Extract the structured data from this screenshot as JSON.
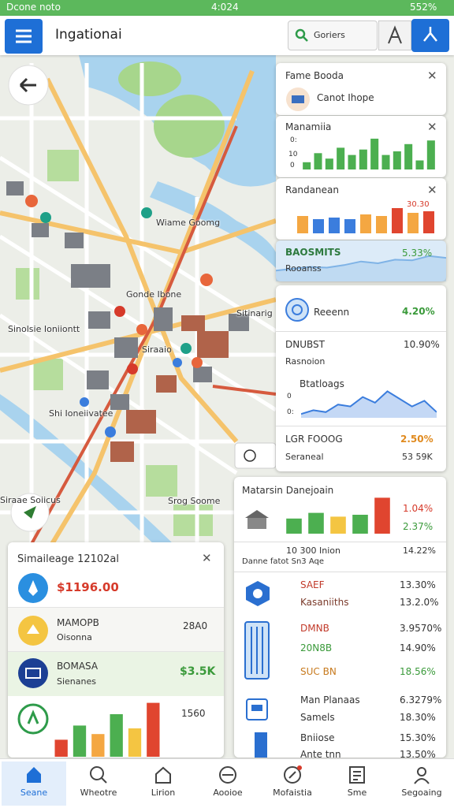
{
  "status_bar": {
    "carrier": "Dcone noto",
    "time": "4:024",
    "battery": "552%"
  },
  "header": {
    "title": "Ingationai",
    "search": "Goriers"
  },
  "map_labels": [
    "Wiame Goomg",
    "Gonde Ibone",
    "Sinolsie Ioniiontt",
    "Siraaio",
    "Sitinarig",
    "Shi Ioneiivatee",
    "Siraae Soiicus",
    "Srog Soome"
  ],
  "panel_fame": {
    "title": "Fame Booda",
    "subtitle": "Canot Ihope"
  },
  "panel_manamiia": {
    "title": "Manamiia",
    "axis_top": "0:",
    "axis_mid": "10",
    "axis_bottom": "0",
    "chart": {
      "type": "bar",
      "ylim": [
        0,
        100
      ],
      "color": "#4caf50",
      "values": [
        20,
        45,
        30,
        60,
        40,
        55,
        85,
        40,
        50,
        70,
        25,
        80
      ]
    }
  },
  "panel_randanean": {
    "title": "Randanean",
    "label": "30.30",
    "chart": {
      "type": "bar",
      "ylim": [
        0,
        100
      ],
      "colors": [
        "#f4a742",
        "#3b7ddd",
        "#3b7ddd",
        "#3b7ddd",
        "#f4a742",
        "#f4a742",
        "#e0452f",
        "#f4a742",
        "#e0452f"
      ],
      "values": [
        55,
        45,
        50,
        45,
        60,
        55,
        80,
        65,
        70
      ]
    }
  },
  "panel_baosmits": {
    "title": "BAOSMITS",
    "value": "5.33%",
    "subtitle": "Rooanss",
    "chart": {
      "type": "area",
      "ylim": [
        0,
        100
      ],
      "color": "#7fb3e6",
      "values": [
        30,
        35,
        40,
        38,
        45,
        55,
        50,
        60,
        58,
        70,
        65
      ]
    }
  },
  "panel_stats": {
    "row1": {
      "label": "Reeenn",
      "value": "4.20%"
    },
    "row2": {
      "label": "DNUBST",
      "value": "10.90%",
      "sub": "Rasnoion"
    },
    "row3": {
      "label": "Btatloags",
      "axis_top": "0",
      "axis_bottom": "0:",
      "chart": {
        "type": "area",
        "ylim": [
          0,
          100
        ],
        "color": "#3b7ddd",
        "values": [
          10,
          20,
          15,
          35,
          30,
          55,
          40,
          70,
          50,
          30,
          45,
          15
        ]
      }
    },
    "row4": {
      "label": "LGR FOOOG",
      "value": "2.50%",
      "sub": "Seraneal",
      "sub_value": "53 59K"
    }
  },
  "panel_matarsin": {
    "title": "Matarsin Danejoain",
    "value_a": "1.04%",
    "value_b": "2.37%",
    "chart": {
      "type": "bar",
      "ylim": [
        0,
        100
      ],
      "colors": [
        "#4caf50",
        "#4caf50",
        "#f4c542",
        "#4caf50",
        "#e0452f"
      ],
      "values": [
        40,
        55,
        45,
        50,
        95
      ]
    },
    "summary": {
      "label": "10 300 Inion",
      "value": "14.22%",
      "sub": "Danne fatot Sn3 Aqe"
    },
    "rows": [
      {
        "label": "SAEF",
        "value": "13.30%"
      },
      {
        "label": "Kasaniiths",
        "value": "13.2.0%"
      },
      {
        "label": "DMNB",
        "value": "3.9570%"
      },
      {
        "label": "20N8B",
        "value": "14.90%"
      },
      {
        "label": "SUC BN",
        "value": "18.56%"
      },
      {
        "label": "Man Planaas",
        "value": "6.3279%"
      },
      {
        "label": "Samels",
        "value": "18.30%"
      },
      {
        "label": "Bniiose",
        "value": "15.30%"
      },
      {
        "label": "Ante tnn",
        "value": "13.50%"
      }
    ]
  },
  "panel_mileage": {
    "title": "Simaileage 12102al",
    "row1": {
      "value": "$1196.00"
    },
    "row2": {
      "label": "MAMOPB",
      "sub": "Oisonna",
      "value": "28A0"
    },
    "row3": {
      "label": "BOMASA",
      "sub": "Sienanes",
      "value": "$3.5K"
    },
    "row4": {
      "value": "1560",
      "chart": {
        "type": "bar",
        "ylim": [
          0,
          100
        ],
        "colors": [
          "#e0452f",
          "#4caf50",
          "#f4a742",
          "#4caf50",
          "#f4c542",
          "#e0452f"
        ],
        "values": [
          30,
          55,
          40,
          75,
          50,
          95
        ]
      }
    }
  },
  "nav": [
    "Seane",
    "Wheotre",
    "Lirion",
    "Aooioe",
    "Mofaistia",
    "Sme",
    "Segoaing"
  ]
}
